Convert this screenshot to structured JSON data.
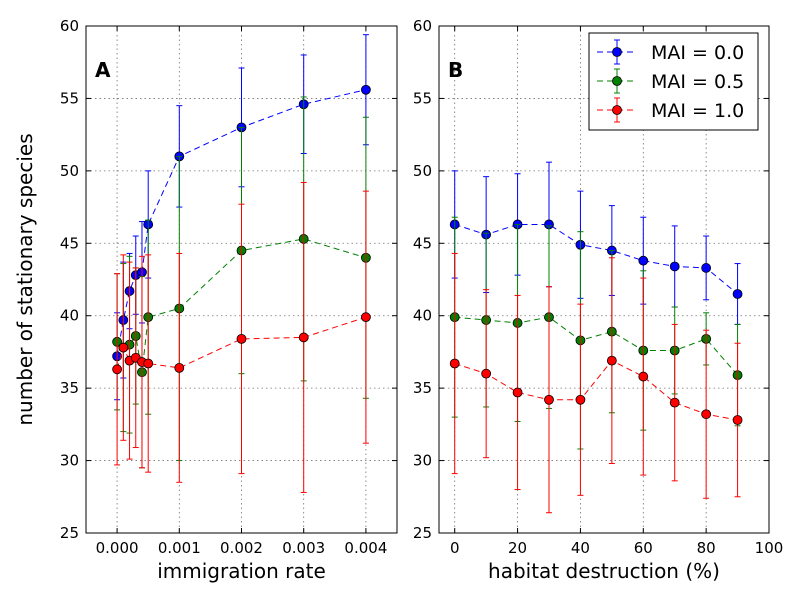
{
  "chart_data": [
    {
      "type": "line",
      "panel_label": "A",
      "xlabel": "immigration rate",
      "ylabel": "number of stationary species",
      "xlim": [
        -0.0005,
        0.0045
      ],
      "ylim": [
        25,
        60
      ],
      "x_ticks": [
        0.0,
        0.001,
        0.002,
        0.003,
        0.004
      ],
      "x_tick_labels": [
        "0.000",
        "0.001",
        "0.002",
        "0.003",
        "0.004"
      ],
      "y_ticks": [
        25,
        30,
        35,
        40,
        45,
        50,
        55,
        60
      ],
      "y_tick_labels": [
        "25",
        "30",
        "35",
        "40",
        "45",
        "50",
        "55",
        "60"
      ],
      "grid": true,
      "series": [
        {
          "name": "MAI = 0.0",
          "color": "#0000ff",
          "x": [
            0.0,
            0.0001,
            0.0002,
            0.0003,
            0.0004,
            0.0005,
            0.001,
            0.002,
            0.003,
            0.004
          ],
          "y": [
            37.2,
            39.7,
            41.7,
            42.8,
            43.0,
            46.3,
            51.0,
            53.0,
            54.6,
            55.6
          ],
          "err": [
            3.0,
            4.0,
            2.6,
            2.7,
            3.5,
            3.7,
            3.5,
            4.1,
            3.4,
            3.8
          ]
        },
        {
          "name": "MAI = 0.5",
          "color": "#008000",
          "x": [
            0.0,
            0.0001,
            0.0002,
            0.0003,
            0.0004,
            0.0005,
            0.001,
            0.002,
            0.003,
            0.004
          ],
          "y": [
            38.2,
            37.8,
            38.0,
            38.6,
            36.1,
            39.9,
            40.5,
            44.5,
            45.3,
            44.0
          ],
          "err": [
            4.7,
            5.8,
            6.1,
            4.7,
            6.6,
            6.7,
            10.5,
            8.5,
            9.8,
            9.7
          ]
        },
        {
          "name": "MAI = 1.0",
          "color": "#ff0000",
          "x": [
            0.0,
            0.0001,
            0.0002,
            0.0003,
            0.0004,
            0.0005,
            0.001,
            0.002,
            0.003,
            0.004
          ],
          "y": [
            36.3,
            37.8,
            36.9,
            37.1,
            36.8,
            36.7,
            36.4,
            38.4,
            38.5,
            39.9
          ],
          "err": [
            6.6,
            6.4,
            6.8,
            6.2,
            7.3,
            7.5,
            7.9,
            9.3,
            10.7,
            8.7
          ]
        }
      ]
    },
    {
      "type": "line",
      "panel_label": "B",
      "xlabel": "habitat destruction (%)",
      "ylabel": "",
      "xlim": [
        -5,
        100
      ],
      "ylim": [
        25,
        60
      ],
      "x_ticks": [
        0,
        20,
        40,
        60,
        80,
        100
      ],
      "x_tick_labels": [
        "0",
        "20",
        "40",
        "60",
        "80",
        "100"
      ],
      "y_ticks": [
        25,
        30,
        35,
        40,
        45,
        50,
        55,
        60
      ],
      "y_tick_labels": [
        "25",
        "30",
        "35",
        "40",
        "45",
        "50",
        "55",
        "60"
      ],
      "grid": true,
      "legend": "top-right",
      "series": [
        {
          "name": "MAI = 0.0",
          "color": "#0000ff",
          "x": [
            0,
            10,
            20,
            30,
            40,
            50,
            60,
            70,
            80,
            90
          ],
          "y": [
            46.3,
            45.6,
            46.3,
            46.3,
            44.9,
            44.5,
            43.8,
            43.4,
            43.3,
            41.5
          ],
          "err": [
            3.7,
            4.0,
            3.5,
            4.3,
            3.7,
            3.1,
            3.0,
            2.8,
            2.2,
            2.1
          ]
        },
        {
          "name": "MAI = 0.5",
          "color": "#008000",
          "x": [
            0,
            10,
            20,
            30,
            40,
            50,
            60,
            70,
            80,
            90
          ],
          "y": [
            39.9,
            39.7,
            39.5,
            39.9,
            38.3,
            38.9,
            37.6,
            37.6,
            38.4,
            35.9
          ],
          "err": [
            6.9,
            6.0,
            6.8,
            6.3,
            7.5,
            5.6,
            5.5,
            3.0,
            1.8,
            3.5
          ]
        },
        {
          "name": "MAI = 1.0",
          "color": "#ff0000",
          "x": [
            0,
            10,
            20,
            30,
            40,
            50,
            60,
            70,
            80,
            90
          ],
          "y": [
            36.7,
            36.0,
            34.7,
            34.2,
            34.2,
            36.9,
            35.8,
            34.0,
            33.2,
            32.8
          ],
          "err": [
            7.6,
            5.8,
            6.7,
            7.8,
            6.6,
            7.1,
            6.8,
            5.4,
            5.8,
            5.3
          ]
        }
      ]
    }
  ]
}
